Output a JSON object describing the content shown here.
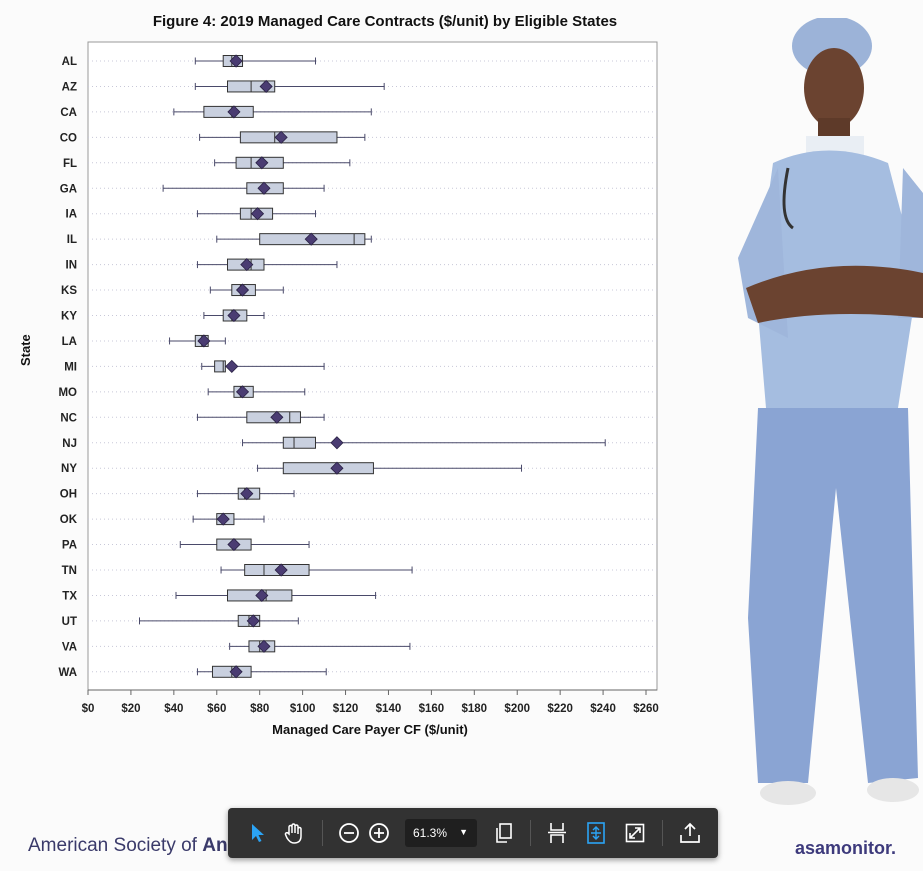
{
  "figure_title": "Figure 4: 2019 Managed Care Contracts ($/unit) by Eligible States",
  "footer": {
    "left_regular": "American Society of ",
    "left_bold": "An",
    "right": "asamonitor."
  },
  "toolbar": {
    "zoom_value": "61.3%",
    "tools": [
      "select-arrow-icon",
      "hand-pan-icon",
      "zoom-out-icon",
      "zoom-in-icon",
      "zoom-dropdown",
      "rotate-pages-icon",
      "fit-width-icon",
      "fit-page-icon",
      "fullscreen-icon",
      "share-export-icon"
    ],
    "colors": {
      "background": "#323232",
      "icon": "#ffffff",
      "active": "#2ba4f5"
    }
  },
  "chart_data": {
    "type": "boxplot",
    "title": "Figure 4: 2019 Managed Care Contracts ($/unit) by Eligible States",
    "xlabel": "Managed Care Payer CF ($/unit)",
    "ylabel": "State",
    "xlim": [
      0,
      260
    ],
    "x_ticks": [
      "$0",
      "$20",
      "$40",
      "$60",
      "$80",
      "$100",
      "$120",
      "$140",
      "$160",
      "$180",
      "$200",
      "$220",
      "$240",
      "$260"
    ],
    "x_tick_values": [
      0,
      20,
      40,
      60,
      80,
      100,
      120,
      140,
      160,
      180,
      200,
      220,
      240,
      260
    ],
    "grid": "horizontal dotted",
    "colors": {
      "box": "#c9d0df",
      "edge": "#333333",
      "mean_marker": "#4a3c72"
    },
    "states": [
      {
        "state": "AL",
        "min": 50,
        "q1": 63,
        "median": 67,
        "q3": 72,
        "max": 106,
        "mean": 69
      },
      {
        "state": "AZ",
        "min": 50,
        "q1": 65,
        "median": 76,
        "q3": 87,
        "max": 138,
        "mean": 83
      },
      {
        "state": "CA",
        "min": 40,
        "q1": 54,
        "median": 67,
        "q3": 77,
        "max": 132,
        "mean": 68
      },
      {
        "state": "CO",
        "min": 52,
        "q1": 71,
        "median": 87,
        "q3": 116,
        "max": 129,
        "mean": 90
      },
      {
        "state": "FL",
        "min": 59,
        "q1": 69,
        "median": 76,
        "q3": 91,
        "max": 122,
        "mean": 81
      },
      {
        "state": "GA",
        "min": 35,
        "q1": 74,
        "median": 82,
        "q3": 91,
        "max": 110,
        "mean": 82
      },
      {
        "state": "IA",
        "min": 51,
        "q1": 71,
        "median": 76,
        "q3": 86,
        "max": 106,
        "mean": 79
      },
      {
        "state": "IL",
        "min": 60,
        "q1": 80,
        "median": 124,
        "q3": 129,
        "max": 132,
        "mean": 104
      },
      {
        "state": "IN",
        "min": 51,
        "q1": 65,
        "median": 76,
        "q3": 82,
        "max": 116,
        "mean": 74
      },
      {
        "state": "KS",
        "min": 57,
        "q1": 67,
        "median": 71,
        "q3": 78,
        "max": 91,
        "mean": 72
      },
      {
        "state": "KY",
        "min": 54,
        "q1": 63,
        "median": 67,
        "q3": 74,
        "max": 82,
        "mean": 68
      },
      {
        "state": "LA",
        "min": 38,
        "q1": 50,
        "median": 53,
        "q3": 56,
        "max": 64,
        "mean": 54
      },
      {
        "state": "MI",
        "min": 53,
        "q1": 59,
        "median": 63,
        "q3": 64,
        "max": 110,
        "mean": 67
      },
      {
        "state": "MO",
        "min": 56,
        "q1": 68,
        "median": 71,
        "q3": 77,
        "max": 101,
        "mean": 72
      },
      {
        "state": "NC",
        "min": 51,
        "q1": 74,
        "median": 94,
        "q3": 99,
        "max": 110,
        "mean": 88
      },
      {
        "state": "NJ",
        "min": 72,
        "q1": 91,
        "median": 96,
        "q3": 106,
        "max": 241,
        "mean": 116
      },
      {
        "state": "NY",
        "min": 79,
        "q1": 91,
        "median": 116,
        "q3": 133,
        "max": 202,
        "mean": 116
      },
      {
        "state": "OH",
        "min": 51,
        "q1": 70,
        "median": 73,
        "q3": 80,
        "max": 96,
        "mean": 74
      },
      {
        "state": "OK",
        "min": 49,
        "q1": 60,
        "median": 63,
        "q3": 68,
        "max": 82,
        "mean": 63
      },
      {
        "state": "PA",
        "min": 43,
        "q1": 60,
        "median": 68,
        "q3": 76,
        "max": 103,
        "mean": 68
      },
      {
        "state": "TN",
        "min": 62,
        "q1": 73,
        "median": 82,
        "q3": 103,
        "max": 151,
        "mean": 90
      },
      {
        "state": "TX",
        "min": 41,
        "q1": 65,
        "median": 83,
        "q3": 95,
        "max": 134,
        "mean": 81
      },
      {
        "state": "UT",
        "min": 24,
        "q1": 70,
        "median": 75,
        "q3": 80,
        "max": 98,
        "mean": 77
      },
      {
        "state": "VA",
        "min": 66,
        "q1": 75,
        "median": 80,
        "q3": 87,
        "max": 150,
        "mean": 82
      },
      {
        "state": "WA",
        "min": 51,
        "q1": 58,
        "median": 67,
        "q3": 76,
        "max": 111,
        "mean": 69
      }
    ]
  }
}
